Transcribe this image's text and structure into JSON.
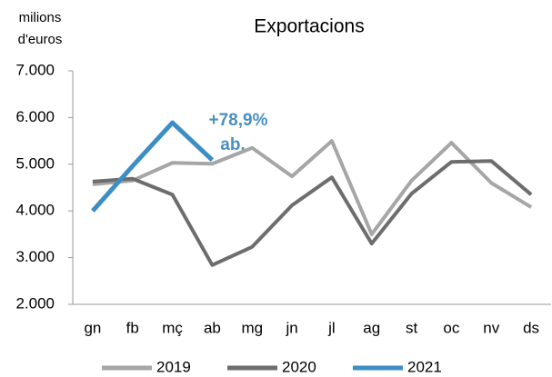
{
  "chart_data": {
    "type": "line",
    "title": "Exportacions",
    "y_label": [
      "milions",
      "d'euros"
    ],
    "annotation": [
      "+78,9%",
      "ab."
    ],
    "categories": [
      "gn",
      "fb",
      "mç",
      "ab",
      "mg",
      "jn",
      "jl",
      "ag",
      "st",
      "oc",
      "nv",
      "ds"
    ],
    "series": [
      {
        "name": "2019",
        "color": "#a6a6a6",
        "values": [
          4570,
          4650,
          5030,
          5010,
          5350,
          4740,
          5500,
          3500,
          4650,
          5460,
          4600,
          4080
        ]
      },
      {
        "name": "2020",
        "color": "#6d6d6d",
        "values": [
          4630,
          4690,
          4350,
          2840,
          3230,
          4120,
          4720,
          3300,
          4370,
          5050,
          5070,
          4350
        ]
      },
      {
        "name": "2021",
        "color": "#3d8ec4",
        "values": [
          4000,
          4960,
          5890,
          5090,
          null,
          null,
          null,
          null,
          null,
          null,
          null,
          null
        ]
      }
    ],
    "ylim": [
      2000,
      7000
    ],
    "yticks": [
      {
        "value": 2000,
        "label": "2.000"
      },
      {
        "value": 3000,
        "label": "3.000"
      },
      {
        "value": 4000,
        "label": "4.000"
      },
      {
        "value": 5000,
        "label": "5.000"
      },
      {
        "value": 6000,
        "label": "6.000"
      },
      {
        "value": 7000,
        "label": "7.000"
      }
    ],
    "grid": false,
    "legend": "bottom"
  }
}
